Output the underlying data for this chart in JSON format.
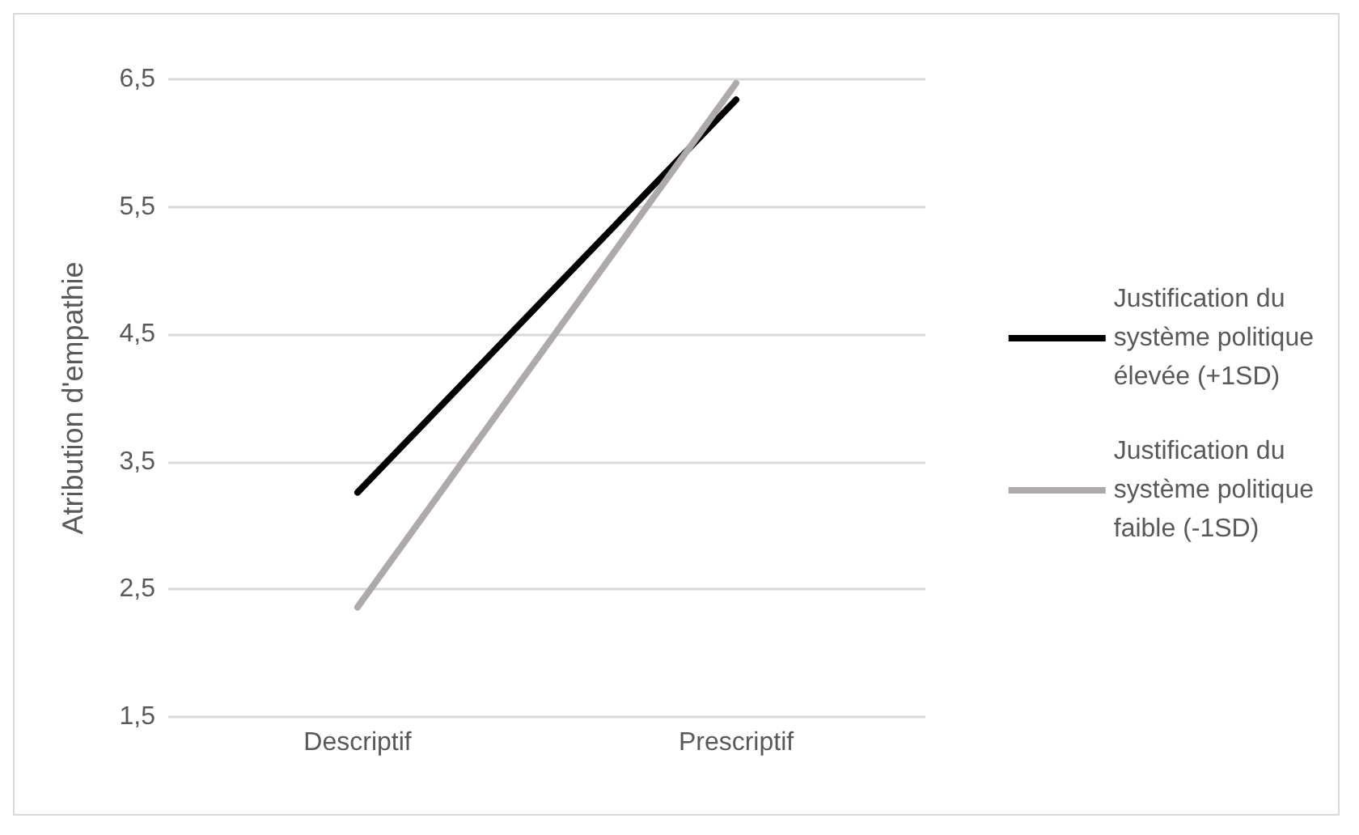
{
  "chart_data": {
    "type": "line",
    "ylabel": "Atribution d'empathie",
    "categories": [
      "Descriptif",
      "Prescriptif"
    ],
    "series": [
      {
        "name": "Justification du système politique élevée (+1SD)",
        "color": "#000000",
        "values": [
          3.26,
          6.34
        ]
      },
      {
        "name": "Justification du système politique faible (-1SD)",
        "color": "#aeaaaa",
        "values": [
          2.36,
          6.47
        ]
      }
    ],
    "ylim": [
      1.5,
      6.5
    ],
    "yticks": [
      {
        "value": 1.5,
        "label": "1,5"
      },
      {
        "value": 2.5,
        "label": "2,5"
      },
      {
        "value": 3.5,
        "label": "3,5"
      },
      {
        "value": 4.5,
        "label": "4,5"
      },
      {
        "value": 5.5,
        "label": "5,5"
      },
      {
        "value": 6.5,
        "label": "6,5"
      }
    ],
    "grid": "y",
    "legend": "right",
    "marker": "none",
    "line_style": "solid"
  }
}
